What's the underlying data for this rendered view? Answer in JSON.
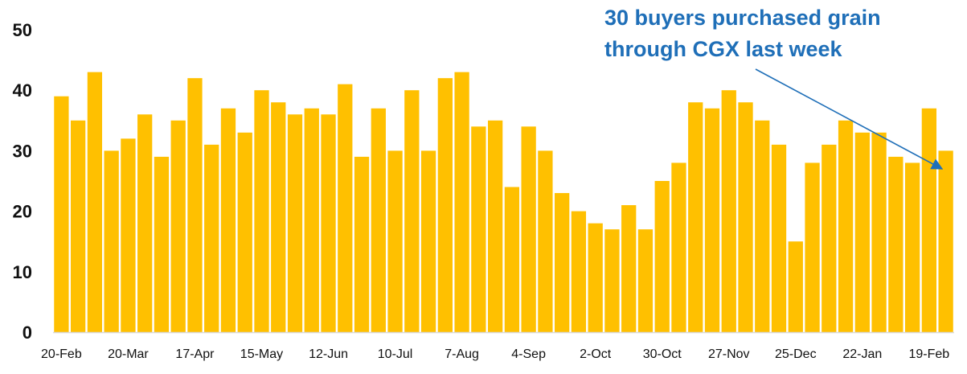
{
  "chart_data": {
    "type": "bar",
    "x_tick_labels": [
      "20-Feb",
      "20-Mar",
      "17-Apr",
      "15-May",
      "12-Jun",
      "10-Jul",
      "7-Aug",
      "4-Sep",
      "2-Oct",
      "30-Oct",
      "27-Nov",
      "25-Dec",
      "22-Jan",
      "19-Feb"
    ],
    "values": [
      39,
      35,
      43,
      30,
      32,
      36,
      29,
      35,
      42,
      31,
      37,
      33,
      40,
      38,
      36,
      37,
      36,
      41,
      29,
      37,
      30,
      40,
      30,
      42,
      43,
      34,
      35,
      24,
      34,
      30,
      23,
      20,
      18,
      17,
      21,
      17,
      25,
      28,
      38,
      37,
      40,
      38,
      35,
      31,
      15,
      28,
      31,
      35,
      33,
      33,
      29,
      28,
      37,
      30
    ],
    "ylim": [
      0,
      50
    ],
    "yticks": [
      0,
      10,
      20,
      30,
      40,
      50
    ],
    "annotation": {
      "lines": [
        "30 buyers purchased grain",
        "through CGX last week"
      ]
    },
    "colors": {
      "bar": "#FFC000",
      "annotation": "#1F6FB8",
      "axis": "#D9D9D9"
    },
    "grid": false,
    "legend": "none"
  }
}
